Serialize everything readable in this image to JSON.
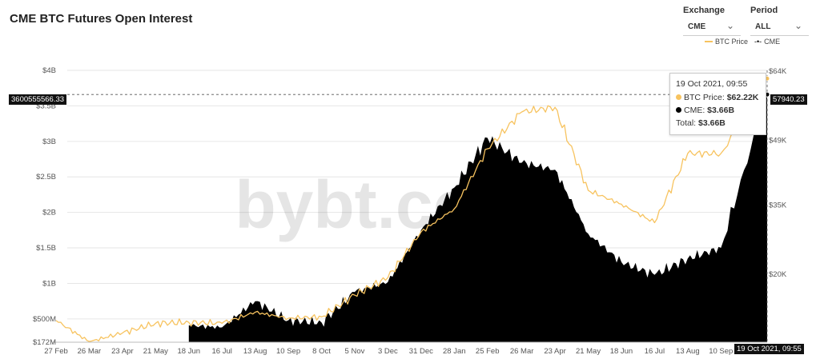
{
  "header": {
    "title": "CME BTC Futures Open Interest",
    "exchange_label": "Exchange",
    "exchange_value": "CME",
    "period_label": "Period",
    "period_value": "ALL"
  },
  "watermark": "bybt.com",
  "tooltip": {
    "date": "19 Oct 2021, 09:55",
    "btc_label": "BTC Price:",
    "btc_value": "$62.22K",
    "cme_label": "CME:",
    "cme_value": "$3.66B",
    "total_label": "Total:",
    "total_value": "$3.66B"
  },
  "crosshair": {
    "left_value": "3600555566.33",
    "right_value": "57940.23",
    "bottom_value": "19 Oct 2021, 09:55"
  },
  "colors": {
    "btc": "#F7C35F",
    "cme": "#000000",
    "grid": "#e6e6e6"
  },
  "chart_data": {
    "type": "area",
    "title": "CME BTC Futures Open Interest",
    "legend": [
      "BTC Price",
      "CME"
    ],
    "legend_position": "top-right",
    "grid": true,
    "x_ticks": [
      "27 Feb",
      "26 Mar",
      "23 Apr",
      "21 May",
      "18 Jun",
      "16 Jul",
      "13 Aug",
      "10 Sep",
      "8 Oct",
      "5 Nov",
      "3 Dec",
      "31 Dec",
      "28 Jan",
      "25 Feb",
      "26 Mar",
      "23 Apr",
      "21 May",
      "18 Jun",
      "16 Jul",
      "13 Aug",
      "10 Sep"
    ],
    "y_left": {
      "ticks": [
        "$4B",
        "$3.5B",
        "$3B",
        "$2.5B",
        "$2B",
        "$1.5B",
        "$1B",
        "$500M",
        "$172M"
      ],
      "tick_values": [
        4,
        3.5,
        3,
        2.5,
        2,
        1.5,
        1,
        0.5,
        0.172
      ],
      "range": [
        0.172,
        4
      ]
    },
    "y_right": {
      "ticks": [
        "$64K",
        "$49K",
        "$35K",
        "$20K"
      ],
      "tick_values": [
        64000,
        49000,
        35000,
        20000
      ]
    },
    "dates": [
      "2020-02-27",
      "2020-03-26",
      "2020-04-23",
      "2020-05-21",
      "2020-06-18",
      "2020-07-16",
      "2020-08-13",
      "2020-09-10",
      "2020-10-08",
      "2020-11-05",
      "2020-12-03",
      "2020-12-31",
      "2021-01-28",
      "2021-02-25",
      "2021-03-26",
      "2021-04-23",
      "2021-05-21",
      "2021-06-18",
      "2021-07-16",
      "2021-08-13",
      "2021-09-10",
      "2021-10-19"
    ],
    "series": [
      {
        "name": "BTC Price",
        "axis": "right",
        "values": [
          9800,
          5200,
          7100,
          9200,
          9400,
          9200,
          11600,
          10300,
          10600,
          15300,
          19100,
          29000,
          34000,
          47000,
          55000,
          56000,
          38000,
          35000,
          31000,
          46000,
          46000,
          62220
        ]
      },
      {
        "name": "CME",
        "axis": "left",
        "values": [
          null,
          null,
          null,
          null,
          0.41,
          0.38,
          0.75,
          0.48,
          0.45,
          0.88,
          1.02,
          1.75,
          2.35,
          3.05,
          2.7,
          2.6,
          1.7,
          1.3,
          1.12,
          1.35,
          1.5,
          3.66
        ]
      }
    ]
  }
}
